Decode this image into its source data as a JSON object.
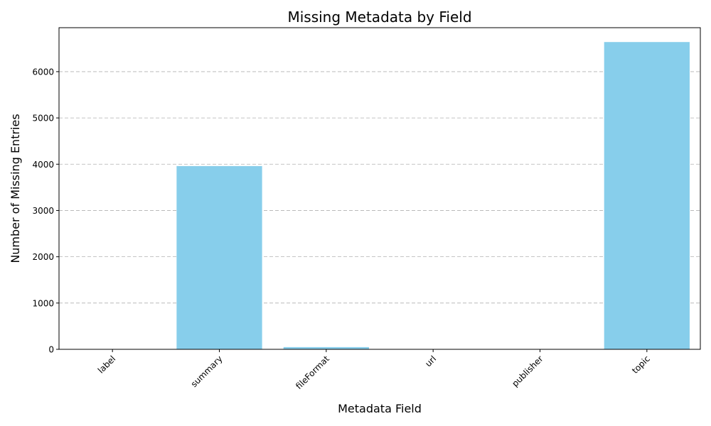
{
  "chart_data": {
    "type": "bar",
    "title": "Missing Metadata by Field",
    "xlabel": "Metadata Field",
    "ylabel": "Number of Missing Entries",
    "categories": [
      "label",
      "summary",
      "fileFormat",
      "url",
      "publisher",
      "topic"
    ],
    "values": [
      0,
      3960,
      48,
      0,
      0,
      6640
    ],
    "ylim": [
      0,
      6950
    ],
    "yticks": [
      0,
      1000,
      2000,
      3000,
      4000,
      5000,
      6000
    ],
    "grid": "y-dashed",
    "bar_color": "#87CEEB",
    "tick_rotation": 45
  }
}
